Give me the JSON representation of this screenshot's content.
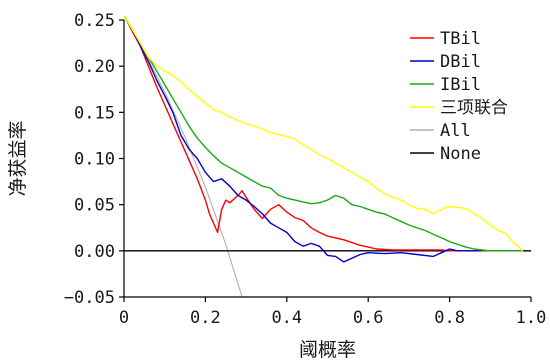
{
  "chart_data": {
    "type": "line",
    "xlabel": "阈概率",
    "ylabel": "净获益率",
    "xlim": [
      0,
      1.0
    ],
    "ylim": [
      -0.05,
      0.25
    ],
    "x_ticks": [
      0,
      0.2,
      0.4,
      0.6,
      0.8,
      1.0
    ],
    "x_tick_labels": [
      "0",
      "0.2",
      "0.4",
      "0.6",
      "0.8",
      "1.0"
    ],
    "y_ticks": [
      -0.05,
      0.0,
      0.05,
      0.1,
      0.15,
      0.2,
      0.25
    ],
    "y_tick_labels": [
      "−0.05",
      "0.00",
      "0.05",
      "0.10",
      "0.15",
      "0.20",
      "0.25"
    ],
    "grid": false,
    "legend_position": "top-right",
    "series": [
      {
        "name": "TBil",
        "color": "#ff0000",
        "x": [
          0,
          0.02,
          0.04,
          0.06,
          0.08,
          0.1,
          0.12,
          0.14,
          0.16,
          0.18,
          0.2,
          0.21,
          0.22,
          0.23,
          0.24,
          0.25,
          0.26,
          0.28,
          0.29,
          0.3,
          0.32,
          0.34,
          0.36,
          0.38,
          0.4,
          0.42,
          0.44,
          0.46,
          0.48,
          0.5,
          0.54,
          0.58,
          0.6,
          0.62,
          0.66,
          0.7,
          0.74,
          0.78,
          0.8,
          0.84,
          0.88,
          0.92,
          0.96,
          0.98
        ],
        "y": [
          0.255,
          0.238,
          0.222,
          0.2,
          0.178,
          0.158,
          0.138,
          0.118,
          0.098,
          0.078,
          0.055,
          0.04,
          0.03,
          0.02,
          0.045,
          0.055,
          0.052,
          0.06,
          0.065,
          0.058,
          0.045,
          0.035,
          0.045,
          0.05,
          0.042,
          0.036,
          0.033,
          0.025,
          0.02,
          0.016,
          0.012,
          0.006,
          0.004,
          0.002,
          0.001,
          0.001,
          0.001,
          0.001,
          0.0,
          0.0,
          0.0,
          0.0,
          0.0,
          0.0
        ]
      },
      {
        "name": "DBil",
        "color": "#0000cc",
        "x": [
          0,
          0.02,
          0.04,
          0.06,
          0.08,
          0.1,
          0.12,
          0.14,
          0.16,
          0.18,
          0.2,
          0.22,
          0.24,
          0.26,
          0.28,
          0.3,
          0.32,
          0.34,
          0.36,
          0.38,
          0.4,
          0.42,
          0.44,
          0.46,
          0.48,
          0.5,
          0.52,
          0.54,
          0.56,
          0.58,
          0.6,
          0.64,
          0.68,
          0.72,
          0.76,
          0.78,
          0.8,
          0.82,
          0.84,
          0.86,
          0.88
        ],
        "y": [
          0.255,
          0.24,
          0.222,
          0.205,
          0.185,
          0.168,
          0.15,
          0.125,
          0.11,
          0.1,
          0.085,
          0.075,
          0.078,
          0.07,
          0.06,
          0.055,
          0.048,
          0.04,
          0.03,
          0.025,
          0.02,
          0.01,
          0.005,
          0.008,
          0.005,
          -0.005,
          -0.006,
          -0.012,
          -0.008,
          -0.004,
          -0.002,
          -0.003,
          -0.002,
          -0.004,
          -0.006,
          -0.002,
          0.002,
          0.0,
          0.0,
          0.0,
          0.0
        ]
      },
      {
        "name": "IBil",
        "color": "#1aa81a",
        "x": [
          0,
          0.02,
          0.04,
          0.06,
          0.08,
          0.1,
          0.12,
          0.14,
          0.16,
          0.18,
          0.2,
          0.22,
          0.24,
          0.26,
          0.28,
          0.3,
          0.32,
          0.34,
          0.36,
          0.38,
          0.4,
          0.42,
          0.44,
          0.46,
          0.48,
          0.5,
          0.52,
          0.54,
          0.56,
          0.58,
          0.6,
          0.62,
          0.64,
          0.66,
          0.68,
          0.7,
          0.72,
          0.74,
          0.76,
          0.78,
          0.8,
          0.82,
          0.84,
          0.86,
          0.88,
          0.9,
          0.92,
          0.94,
          0.96,
          0.98
        ],
        "y": [
          0.255,
          0.24,
          0.225,
          0.21,
          0.195,
          0.18,
          0.165,
          0.15,
          0.135,
          0.122,
          0.112,
          0.103,
          0.095,
          0.09,
          0.085,
          0.08,
          0.075,
          0.07,
          0.068,
          0.06,
          0.057,
          0.055,
          0.053,
          0.051,
          0.052,
          0.055,
          0.06,
          0.057,
          0.05,
          0.048,
          0.045,
          0.042,
          0.04,
          0.036,
          0.032,
          0.028,
          0.025,
          0.022,
          0.018,
          0.014,
          0.01,
          0.007,
          0.004,
          0.002,
          0.001,
          0.0,
          0.0,
          0.0,
          0.0,
          0.0
        ]
      },
      {
        "name": "三项联合",
        "color": "#ffff00",
        "x": [
          0,
          0.02,
          0.04,
          0.06,
          0.08,
          0.1,
          0.12,
          0.14,
          0.16,
          0.18,
          0.2,
          0.22,
          0.24,
          0.26,
          0.28,
          0.3,
          0.32,
          0.34,
          0.36,
          0.38,
          0.4,
          0.42,
          0.44,
          0.46,
          0.48,
          0.5,
          0.52,
          0.54,
          0.56,
          0.58,
          0.6,
          0.62,
          0.64,
          0.66,
          0.68,
          0.7,
          0.72,
          0.74,
          0.76,
          0.78,
          0.8,
          0.82,
          0.84,
          0.86,
          0.88,
          0.9,
          0.92,
          0.94,
          0.95,
          0.96,
          0.97,
          0.98
        ],
        "y": [
          0.255,
          0.24,
          0.225,
          0.21,
          0.2,
          0.195,
          0.19,
          0.183,
          0.175,
          0.167,
          0.16,
          0.153,
          0.15,
          0.145,
          0.141,
          0.138,
          0.135,
          0.132,
          0.128,
          0.126,
          0.124,
          0.121,
          0.115,
          0.11,
          0.104,
          0.1,
          0.095,
          0.09,
          0.085,
          0.08,
          0.075,
          0.068,
          0.062,
          0.058,
          0.055,
          0.05,
          0.046,
          0.045,
          0.04,
          0.045,
          0.048,
          0.047,
          0.046,
          0.04,
          0.035,
          0.028,
          0.022,
          0.018,
          0.012,
          0.008,
          0.004,
          0.0
        ]
      },
      {
        "name": "All",
        "color": "#b0b0b0",
        "x": [
          0,
          0.05,
          0.1,
          0.15,
          0.2,
          0.25,
          0.3
        ],
        "y": [
          0.255,
          0.216,
          0.172,
          0.123,
          0.069,
          0.007,
          -0.064
        ]
      },
      {
        "name": "None",
        "color": "#000000",
        "x": [
          0,
          1.0
        ],
        "y": [
          0.0,
          0.0
        ]
      }
    ]
  }
}
